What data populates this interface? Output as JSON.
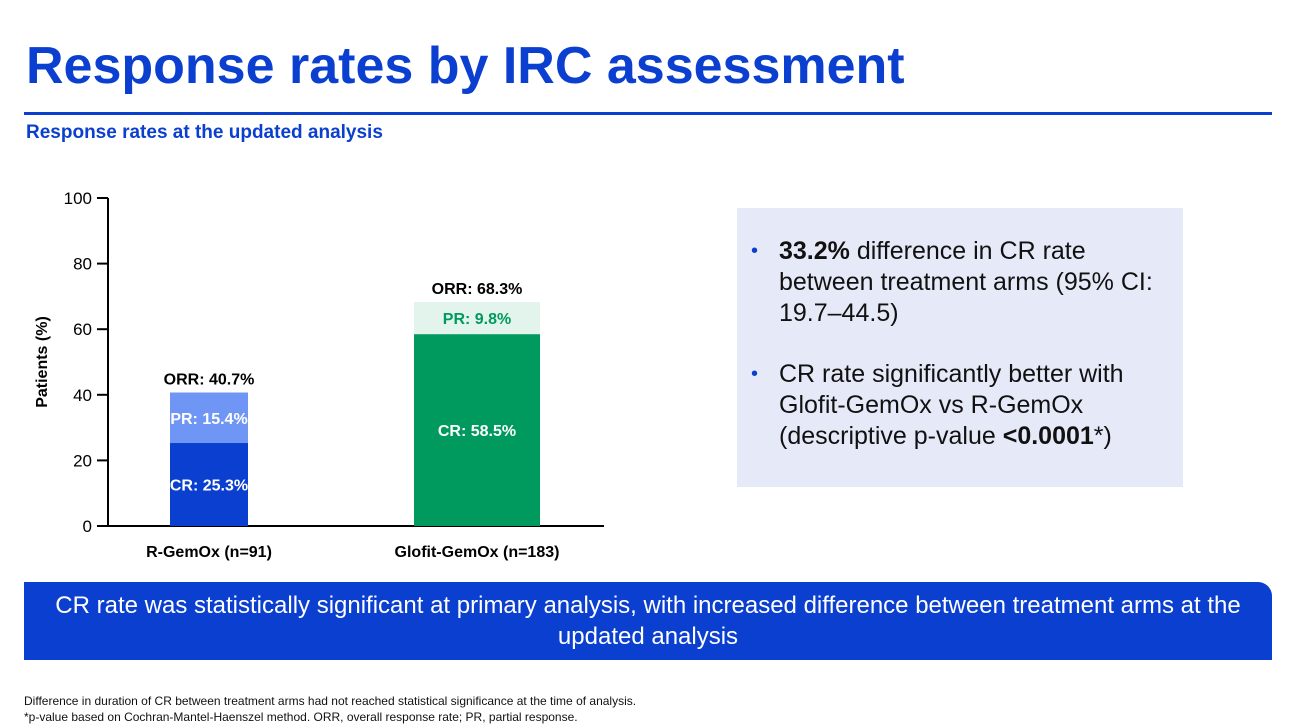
{
  "title": "Response rates by IRC assessment",
  "subtitle": "Response rates at the updated analysis",
  "chart_data": {
    "type": "bar",
    "stacked": true,
    "ylabel": "Patients (%)",
    "ylim": [
      0,
      100
    ],
    "yticks": [
      0,
      20,
      40,
      60,
      80,
      100
    ],
    "categories": [
      "R-GemOx (n=91)",
      "Glofit-GemOx (n=183)"
    ],
    "series": [
      {
        "name": "CR",
        "values": [
          25.3,
          58.5
        ],
        "labels": [
          "CR: 25.3%",
          "CR: 58.5%"
        ],
        "colors": [
          "#0b3fd0",
          "#009a5f"
        ],
        "label_colors": [
          "#ffffff",
          "#ffffff"
        ]
      },
      {
        "name": "PR",
        "values": [
          15.4,
          9.8
        ],
        "labels": [
          "PR: 15.4%",
          "PR: 9.8%"
        ],
        "colors": [
          "#7096f5",
          "#e3f4ec"
        ],
        "label_colors": [
          "#ffffff",
          "#009a5f"
        ]
      }
    ],
    "totals": [
      40.7,
      68.3
    ],
    "total_labels": [
      "ORR: 40.7%",
      "ORR: 68.3%"
    ],
    "grid": false
  },
  "info": {
    "bullet1_bold": "33.2%",
    "bullet1_text": " difference in CR rate between treatment arms (95% CI: 19.7–44.5)",
    "bullet2_text": "CR rate significantly better with Glofit-GemOx vs R-GemOx (descriptive p-value ",
    "bullet2_bold": "<0.0001",
    "bullet2_tail": "*)"
  },
  "banner": "CR rate was statistically significant at primary analysis, with increased difference between treatment arms at the updated analysis",
  "footnotes": [
    "Difference in duration of CR between treatment arms had not reached statistical significance at the time of analysis.",
    "*p-value based on Cochran-Mantel-Haenszel method. ORR, overall response rate; PR, partial response."
  ]
}
